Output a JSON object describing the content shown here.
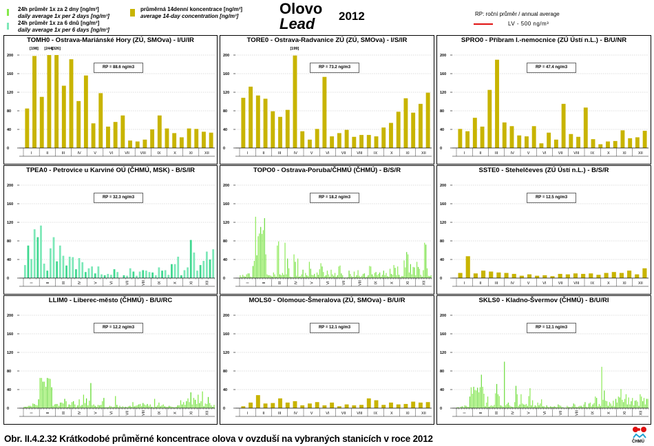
{
  "header": {
    "title_cz": "Olovo",
    "title_en": "Lead",
    "year": "2012",
    "legend": {
      "daily2_cz": "24h průměr 1x za 2 dny [ng/m³]",
      "daily2_en": "daily average 1x per 2 days [ng/m³]",
      "daily6_cz": "24h průměr 1x za 6 dnů [ng/m³]",
      "daily6_en": "daily average 1x per 6 days [ng/m³]",
      "avg14_cz": "průměrná 14denní koncentrace [ng/m³]",
      "avg14_en": "average 14-day concentration [ng/m³]",
      "rp_label": "RP: roční průměr / annual average",
      "lv_label": "LV - 500 ng/m³"
    },
    "colors": {
      "daily2": "#84e84a",
      "daily6": "#7de8b8",
      "avg14": "#c8b400",
      "lv": "#e01010"
    }
  },
  "caption": "Obr. II.4.2.32  Krátkodobé průměrné koncentrace olova v ovzduší na vybraných stanicích v roce 2012",
  "logo_text": "ČHMÚ",
  "chart_data": [
    {
      "type": "bar",
      "title": "TOMH0 - Ostrava-Mariánské Hory (ZÚ, SMOva) - I/U/IR",
      "rp": "RP = 88.6 ng/m3",
      "series_kind": "avg14",
      "annotations": [
        "[198]",
        "[244]",
        "[326]"
      ],
      "ylim": [
        0,
        200
      ],
      "yticks": [
        "0",
        "40",
        "80",
        "120",
        "160",
        "200"
      ],
      "months": [
        "I",
        "II",
        "III",
        "IV",
        "V",
        "VI",
        "VII",
        "VIII",
        "IX",
        "X",
        "XI",
        "XII"
      ],
      "values": [
        85,
        198,
        110,
        200,
        200,
        134,
        191,
        101,
        156,
        53,
        118,
        46,
        56,
        70,
        16,
        14,
        18,
        40,
        70,
        42,
        32,
        23,
        42,
        41,
        35,
        33
      ]
    },
    {
      "type": "bar",
      "title": "TORE0 - Ostrava-Radvanice ZÚ (ZÚ, SMOva) - I/S/IR",
      "rp": "RP = 73.2 ng/m3",
      "series_kind": "avg14",
      "annotations": [
        "[199]"
      ],
      "ylim": [
        0,
        200
      ],
      "yticks": [
        "0",
        "40",
        "80",
        "120",
        "160",
        "200"
      ],
      "months": [
        "I",
        "II",
        "III",
        "IV",
        "V",
        "VI",
        "VII",
        "VIII",
        "IX",
        "X",
        "XI",
        "XII"
      ],
      "values": [
        108,
        132,
        113,
        106,
        79,
        67,
        82,
        199,
        36,
        18,
        41,
        153,
        25,
        32,
        39,
        24,
        28,
        28,
        25,
        44,
        54,
        78,
        107,
        76,
        95,
        119
      ]
    },
    {
      "type": "bar",
      "title": "SPRO0 - Příbram I.-nemocnice (ZÚ Ústí n.L.) - B/U/NR",
      "rp": "RP = 47.4 ng/m3",
      "series_kind": "avg14",
      "annotations": [],
      "ylim": [
        0,
        200
      ],
      "yticks": [
        "0",
        "40",
        "80",
        "120",
        "160",
        "200"
      ],
      "months": [
        "I",
        "II",
        "III",
        "IV",
        "V",
        "VI",
        "VII",
        "VIII",
        "IX",
        "X",
        "XI",
        "XII"
      ],
      "values": [
        41,
        36,
        65,
        46,
        125,
        190,
        55,
        47,
        27,
        25,
        47,
        10,
        33,
        18,
        95,
        30,
        24,
        87,
        19,
        8,
        14,
        15,
        38,
        21,
        23,
        37
      ]
    },
    {
      "type": "bar",
      "title": "TPEA0 - Petrovice u Karviné OÚ (ČHMÚ, MSK) - B/S/IR",
      "rp": "RP = 32.3 ng/m3",
      "series_kind": "daily6",
      "annotations": [],
      "ylim": [
        0,
        200
      ],
      "yticks": [
        "0",
        "40",
        "80",
        "120",
        "160",
        "200"
      ],
      "months": [
        "I",
        "II",
        "III",
        "IV",
        "V",
        "VI",
        "VII",
        "VIII",
        "IX",
        "X",
        "XI",
        "XII"
      ],
      "values": [
        28,
        70,
        41,
        105,
        88,
        113,
        31,
        16,
        64,
        88,
        36,
        70,
        48,
        27,
        46,
        45,
        19,
        43,
        34,
        13,
        21,
        25,
        10,
        25,
        8,
        6,
        9,
        7,
        19,
        13,
        0,
        6,
        5,
        21,
        14,
        5,
        14,
        17,
        16,
        13,
        12,
        6,
        23,
        16,
        17,
        7,
        30,
        30,
        46,
        6,
        17,
        23,
        82,
        55,
        16,
        28,
        37,
        57,
        40,
        62
      ]
    },
    {
      "type": "bar",
      "title": "TOPO0 - Ostrava-Poruba/ČHMÚ (ČHMÚ) - B/S/R",
      "rp": "RP = 18.2 ng/m3",
      "series_kind": "daily2",
      "annotations": [],
      "ylim": [
        0,
        200
      ],
      "yticks": [
        "0",
        "40",
        "80",
        "120",
        "160",
        "200"
      ],
      "months": [
        "I",
        "II",
        "III",
        "IV",
        "V",
        "VI",
        "VII",
        "VIII",
        "IX",
        "X",
        "XI",
        "XII"
      ],
      "values": [
        6,
        2,
        7,
        4,
        3,
        8,
        10,
        10,
        3,
        2,
        26,
        37,
        132,
        49,
        90,
        96,
        110,
        95,
        103,
        129,
        51,
        8,
        6,
        6,
        5,
        3,
        12,
        8,
        3,
        70,
        79,
        8,
        6,
        11,
        7,
        76,
        8,
        42,
        21,
        3,
        2,
        2,
        51,
        35,
        5,
        42,
        3,
        4,
        8,
        18,
        3,
        11,
        6,
        4,
        35,
        20,
        7,
        6,
        9,
        3,
        12,
        7,
        19,
        32,
        25,
        13,
        4,
        6,
        16,
        8,
        3,
        18,
        8,
        5,
        11,
        3,
        6,
        25,
        27,
        10,
        6,
        1,
        1,
        1,
        2,
        16,
        9,
        4,
        2,
        14,
        3,
        6,
        17,
        5,
        2,
        5,
        9,
        10,
        2,
        3,
        6,
        26,
        25,
        8,
        4,
        11,
        13,
        6,
        9,
        12,
        3,
        7,
        16,
        6,
        11,
        4,
        3,
        20,
        9,
        7,
        28,
        22,
        6,
        25,
        7,
        2,
        4,
        4,
        38,
        23,
        56,
        51,
        12,
        30,
        8,
        24,
        23,
        6,
        35,
        24,
        20,
        7,
        3,
        17,
        76,
        72,
        21,
        5,
        4,
        6
      ]
    },
    {
      "type": "bar",
      "title": "SSTE0 - Stehelčeves (ZÚ Ústí n.L.) - B/S/R",
      "rp": "RP = 12.5 ng/m3",
      "series_kind": "avg14",
      "annotations": [],
      "ylim": [
        0,
        200
      ],
      "yticks": [
        "0",
        "40",
        "80",
        "120",
        "160",
        "200"
      ],
      "months": [
        "I",
        "II",
        "III",
        "IV",
        "V",
        "VI",
        "VII",
        "VIII",
        "IX",
        "X",
        "XI",
        "XII"
      ],
      "values": [
        11,
        47,
        10,
        16,
        14,
        12,
        11,
        9,
        5,
        8,
        5,
        6,
        4,
        9,
        8,
        10,
        9,
        10,
        7,
        11,
        13,
        11,
        16,
        8,
        21
      ]
    },
    {
      "type": "bar",
      "title": "LLIM0 - Liberec-město (ČHMÚ) - B/U/RC",
      "rp": "RP = 12.2 ng/m3",
      "series_kind": "daily2",
      "annotations": [],
      "ylim": [
        0,
        200
      ],
      "yticks": [
        "0",
        "40",
        "80",
        "120",
        "160",
        "200"
      ],
      "months": [
        "I",
        "II",
        "III",
        "IV",
        "V",
        "VI",
        "VII",
        "VIII",
        "IX",
        "X",
        "XI",
        "XII"
      ],
      "values": [
        3,
        3,
        3,
        5,
        5,
        4,
        10,
        9,
        7,
        6,
        19,
        65,
        65,
        57,
        57,
        46,
        65,
        64,
        63,
        45,
        5,
        8,
        9,
        9,
        5,
        12,
        12,
        10,
        20,
        15,
        3,
        8,
        7,
        13,
        15,
        8,
        2,
        6,
        19,
        5,
        7,
        29,
        11,
        21,
        6,
        16,
        54,
        6,
        8,
        5,
        3,
        7,
        6,
        7,
        15,
        22,
        2,
        2,
        2,
        5,
        4,
        2,
        3,
        26,
        7,
        2,
        5,
        2,
        4,
        2,
        3,
        2,
        4,
        5,
        3,
        13,
        4,
        5,
        6,
        8,
        9,
        5,
        11,
        8,
        6,
        9,
        5,
        8,
        3,
        2,
        20,
        3,
        6,
        12,
        4,
        6,
        8,
        4,
        3,
        3,
        5,
        4,
        3,
        2,
        2,
        3,
        6,
        6,
        17,
        8,
        13,
        7,
        15,
        21,
        13,
        34,
        8,
        22,
        18,
        9,
        29,
        11,
        15,
        36,
        4,
        10,
        9,
        24,
        11,
        6,
        3,
        7
      ]
    },
    {
      "type": "bar",
      "title": "MOLS0 - Olomouc-Šmeralova (ZÚ, SMOva) - B/U/R",
      "rp": "RP = 12.1 ng/m3",
      "series_kind": "avg14",
      "annotations": [],
      "ylim": [
        0,
        200
      ],
      "yticks": [
        "0",
        "40",
        "80",
        "120",
        "160",
        "200"
      ],
      "months": [
        "I",
        "II",
        "III",
        "IV",
        "V",
        "VI",
        "VII",
        "VIII",
        "IX",
        "X",
        "XI",
        "XII"
      ],
      "values": [
        4,
        12,
        28,
        10,
        11,
        21,
        12,
        15,
        6,
        10,
        13,
        6,
        12,
        4,
        8,
        6,
        7,
        21,
        17,
        7,
        12,
        8,
        9,
        14,
        12,
        13
      ]
    },
    {
      "type": "bar",
      "title": "SKLS0 - Kladno-Švermov (ČHMÚ) - B/U/RI",
      "rp": "RP = 12.1 ng/m3",
      "series_kind": "daily2",
      "annotations": [],
      "ylim": [
        0,
        200
      ],
      "yticks": [
        "0",
        "40",
        "80",
        "120",
        "160",
        "200"
      ],
      "months": [
        "I",
        "II",
        "III",
        "IV",
        "V",
        "VI",
        "VII",
        "VIII",
        "IX",
        "X",
        "XI",
        "XII"
      ],
      "values": [
        2,
        2,
        1,
        3,
        4,
        2,
        6,
        5,
        3,
        3,
        25,
        45,
        31,
        46,
        39,
        38,
        44,
        34,
        45,
        72,
        46,
        31,
        4,
        12,
        25,
        3,
        5,
        6,
        4,
        7,
        32,
        52,
        30,
        26,
        6,
        5,
        3,
        100,
        6,
        9,
        12,
        6,
        4,
        3,
        2,
        13,
        48,
        30,
        5,
        8,
        30,
        10,
        8,
        7,
        9,
        5,
        26,
        43,
        6,
        17,
        3,
        6,
        4,
        12,
        6,
        10,
        19,
        4,
        4,
        2,
        6,
        3,
        2,
        4,
        3,
        3,
        4,
        3,
        2,
        8,
        6,
        5,
        2,
        2,
        1,
        1,
        5,
        3,
        2,
        2,
        4,
        10,
        8,
        3,
        2,
        4,
        5,
        5,
        3,
        8,
        13,
        3,
        2,
        10,
        12,
        4,
        8,
        11,
        25,
        22,
        4,
        9,
        5,
        89,
        18,
        38,
        16,
        15,
        5,
        13,
        10,
        5,
        16,
        4,
        20,
        12,
        25,
        23,
        41,
        18,
        13,
        20,
        30,
        8,
        23,
        8,
        15,
        22,
        6,
        16,
        17,
        14,
        5,
        30,
        25,
        15,
        22,
        8,
        20,
        20
      ]
    }
  ]
}
